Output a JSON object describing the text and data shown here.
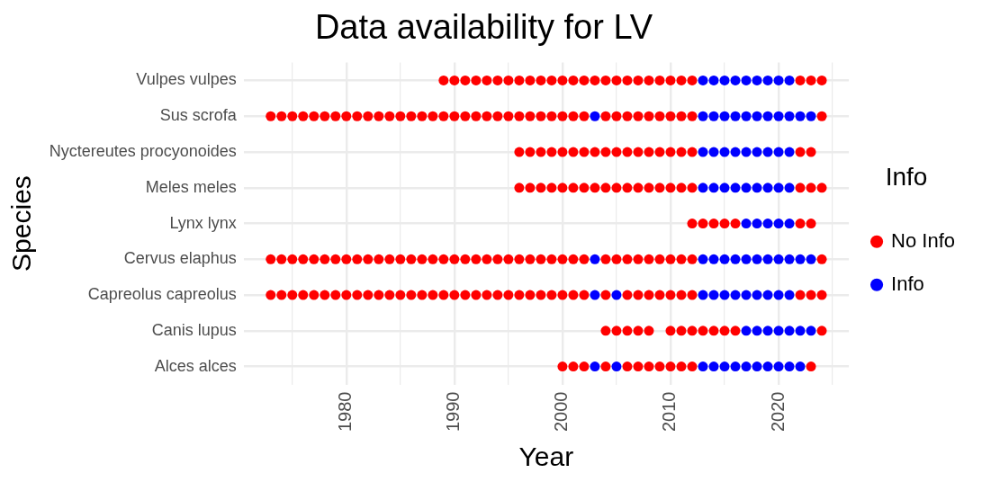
{
  "chart_data": {
    "type": "scatter",
    "title": "Data availability for LV",
    "xlabel": "Year",
    "ylabel": "Species",
    "legend_title": "Info",
    "legend": "right",
    "grid": true,
    "marker": "circle",
    "orientation": "horizontal",
    "categories": [
      "Vulpes vulpes",
      "Sus scrofa",
      "Nyctereutes procyonoides",
      "Meles meles",
      "Lynx lynx",
      "Cervus elaphus",
      "Capreolus capreolus",
      "Canis lupus",
      "Alces alces"
    ],
    "xlim": [
      1970.5,
      2026.5
    ],
    "xticks": [
      {
        "value": 1975,
        "label": null
      },
      1980,
      {
        "value": 1985,
        "label": null
      },
      1990,
      {
        "value": 1995,
        "label": null
      },
      2000,
      {
        "value": 2005,
        "label": null
      },
      2010,
      {
        "value": 2015,
        "label": null
      },
      2020,
      {
        "value": 2025,
        "label": null
      }
    ],
    "series": [
      {
        "name": "No Info",
        "color": "#ff0000",
        "values": [
          null,
          1973,
          null,
          null,
          null,
          1973,
          1973,
          null,
          null
        ]
      },
      {
        "color": "#ff0000",
        "values": [
          null,
          1974,
          null,
          null,
          null,
          1974,
          1974,
          null,
          null
        ]
      },
      {
        "color": "#ff0000",
        "values": [
          null,
          1975,
          null,
          null,
          null,
          1975,
          1975,
          null,
          null
        ]
      },
      {
        "color": "#ff0000",
        "values": [
          null,
          1976,
          null,
          null,
          null,
          1976,
          1976,
          null,
          null
        ]
      },
      {
        "color": "#ff0000",
        "values": [
          null,
          1977,
          null,
          null,
          null,
          1977,
          1977,
          null,
          null
        ]
      },
      {
        "color": "#ff0000",
        "values": [
          null,
          1978,
          null,
          null,
          null,
          1978,
          1978,
          null,
          null
        ]
      },
      {
        "color": "#ff0000",
        "values": [
          null,
          1979,
          null,
          null,
          null,
          1979,
          1979,
          null,
          null
        ]
      },
      {
        "color": "#ff0000",
        "values": [
          null,
          1980,
          null,
          null,
          null,
          1980,
          1980,
          null,
          null
        ]
      },
      {
        "color": "#ff0000",
        "values": [
          null,
          1981,
          null,
          null,
          null,
          1981,
          1981,
          null,
          null
        ]
      },
      {
        "color": "#ff0000",
        "values": [
          null,
          1982,
          null,
          null,
          null,
          1982,
          1982,
          null,
          null
        ]
      },
      {
        "color": "#ff0000",
        "values": [
          null,
          1983,
          null,
          null,
          null,
          1983,
          1983,
          null,
          null
        ]
      },
      {
        "color": "#ff0000",
        "values": [
          null,
          1984,
          null,
          null,
          null,
          1984,
          1984,
          null,
          null
        ]
      },
      {
        "color": "#ff0000",
        "values": [
          null,
          1985,
          null,
          null,
          null,
          1985,
          1985,
          null,
          null
        ]
      },
      {
        "color": "#ff0000",
        "values": [
          null,
          1986,
          null,
          null,
          null,
          1986,
          1986,
          null,
          null
        ]
      },
      {
        "color": "#ff0000",
        "values": [
          null,
          1987,
          null,
          null,
          null,
          1987,
          1987,
          null,
          null
        ]
      },
      {
        "color": "#ff0000",
        "values": [
          null,
          1988,
          null,
          null,
          null,
          1988,
          1988,
          null,
          null
        ]
      },
      {
        "color": "#ff0000",
        "values": [
          1989,
          1989,
          null,
          null,
          null,
          1989,
          1989,
          null,
          null
        ]
      },
      {
        "color": "#ff0000",
        "values": [
          1990,
          1990,
          null,
          null,
          null,
          1990,
          1990,
          null,
          null
        ]
      },
      {
        "color": "#ff0000",
        "values": [
          1991,
          1991,
          null,
          null,
          null,
          1991,
          1991,
          null,
          null
        ]
      },
      {
        "color": "#ff0000",
        "values": [
          1992,
          1992,
          null,
          null,
          null,
          1992,
          1992,
          null,
          null
        ]
      },
      {
        "color": "#ff0000",
        "values": [
          1993,
          1993,
          null,
          null,
          null,
          1993,
          1993,
          null,
          null
        ]
      },
      {
        "color": "#ff0000",
        "values": [
          1994,
          1994,
          null,
          null,
          null,
          1994,
          1994,
          null,
          null
        ]
      },
      {
        "color": "#ff0000",
        "values": [
          1995,
          1995,
          null,
          null,
          null,
          1995,
          1995,
          null,
          null
        ]
      },
      {
        "color": "#ff0000",
        "values": [
          1996,
          1996,
          1996,
          1996,
          null,
          1996,
          1996,
          null,
          null
        ]
      },
      {
        "color": "#ff0000",
        "values": [
          1997,
          1997,
          1997,
          1997,
          null,
          1997,
          1997,
          null,
          null
        ]
      },
      {
        "color": "#ff0000",
        "values": [
          1998,
          1998,
          1998,
          1998,
          null,
          1998,
          1998,
          null,
          null
        ]
      },
      {
        "color": "#ff0000",
        "values": [
          1999,
          1999,
          1999,
          1999,
          null,
          1999,
          1999,
          null,
          null
        ]
      },
      {
        "color": "#ff0000",
        "values": [
          2000,
          2000,
          2000,
          2000,
          null,
          2000,
          2000,
          null,
          2000
        ]
      },
      {
        "color": "#ff0000",
        "values": [
          2001,
          2001,
          2001,
          2001,
          null,
          2001,
          2001,
          null,
          2001
        ]
      },
      {
        "color": "#ff0000",
        "values": [
          2002,
          2002,
          2002,
          2002,
          null,
          2002,
          2002,
          null,
          2002
        ]
      },
      {
        "color": "#ff0000",
        "values": [
          2003,
          null,
          2003,
          2003,
          null,
          null,
          null,
          null,
          null
        ]
      },
      {
        "color": "#ff0000",
        "values": [
          2004,
          2004,
          2004,
          2004,
          null,
          2004,
          2004,
          2004,
          2004
        ]
      },
      {
        "color": "#ff0000",
        "values": [
          2005,
          2005,
          2005,
          2005,
          null,
          2005,
          null,
          2005,
          null
        ]
      },
      {
        "color": "#ff0000",
        "values": [
          2006,
          2006,
          2006,
          2006,
          null,
          2006,
          2006,
          2006,
          2006
        ]
      },
      {
        "color": "#ff0000",
        "values": [
          2007,
          2007,
          2007,
          2007,
          null,
          2007,
          2007,
          2007,
          2007
        ]
      },
      {
        "color": "#ff0000",
        "values": [
          2008,
          2008,
          2008,
          2008,
          null,
          2008,
          2008,
          2008,
          2008
        ]
      },
      {
        "color": "#ff0000",
        "values": [
          2009,
          2009,
          2009,
          2009,
          null,
          2009,
          2009,
          null,
          2009
        ]
      },
      {
        "color": "#ff0000",
        "values": [
          2010,
          2010,
          2010,
          2010,
          null,
          2010,
          2010,
          2010,
          2010
        ]
      },
      {
        "color": "#ff0000",
        "values": [
          2011,
          2011,
          2011,
          2011,
          null,
          2011,
          2011,
          2011,
          2011
        ]
      },
      {
        "color": "#ff0000",
        "values": [
          2012,
          2012,
          2012,
          2012,
          2012,
          2012,
          2012,
          2012,
          2012
        ]
      },
      {
        "color": "#ff0000",
        "values": [
          null,
          null,
          null,
          null,
          2013,
          null,
          null,
          2013,
          null
        ]
      },
      {
        "color": "#ff0000",
        "values": [
          null,
          null,
          null,
          null,
          2014,
          null,
          null,
          2014,
          null
        ]
      },
      {
        "color": "#ff0000",
        "values": [
          null,
          null,
          null,
          null,
          2015,
          null,
          null,
          2015,
          null
        ]
      },
      {
        "color": "#ff0000",
        "values": [
          null,
          null,
          null,
          null,
          2016,
          null,
          null,
          2016,
          null
        ]
      },
      {
        "color": "#ff0000",
        "values": [
          2022,
          null,
          2022,
          2022,
          2022,
          null,
          2022,
          null,
          null
        ]
      },
      {
        "color": "#ff0000",
        "values": [
          2023,
          null,
          2023,
          2023,
          2023,
          null,
          2023,
          null,
          2023
        ]
      },
      {
        "color": "#ff0000",
        "values": [
          2024,
          2024,
          null,
          2024,
          null,
          2024,
          2024,
          2024,
          null
        ]
      },
      {
        "name": "Info",
        "color": "#0000ff",
        "values": [
          null,
          2003,
          null,
          null,
          null,
          2003,
          2003,
          null,
          2003
        ]
      },
      {
        "color": "#0000ff",
        "values": [
          null,
          null,
          null,
          null,
          null,
          null,
          2005,
          null,
          2005
        ]
      },
      {
        "color": "#0000ff",
        "values": [
          2013,
          2013,
          2013,
          2013,
          null,
          2013,
          2013,
          null,
          2013
        ]
      },
      {
        "color": "#0000ff",
        "values": [
          2014,
          2014,
          2014,
          2014,
          null,
          2014,
          2014,
          null,
          2014
        ]
      },
      {
        "color": "#0000ff",
        "values": [
          2015,
          2015,
          2015,
          2015,
          null,
          2015,
          2015,
          null,
          2015
        ]
      },
      {
        "color": "#0000ff",
        "values": [
          2016,
          2016,
          2016,
          2016,
          null,
          2016,
          2016,
          null,
          2016
        ]
      },
      {
        "color": "#0000ff",
        "values": [
          2017,
          2017,
          2017,
          2017,
          2017,
          2017,
          2017,
          2017,
          2017
        ]
      },
      {
        "color": "#0000ff",
        "values": [
          2018,
          2018,
          2018,
          2018,
          2018,
          2018,
          2018,
          2018,
          2018
        ]
      },
      {
        "color": "#0000ff",
        "values": [
          2019,
          2019,
          2019,
          2019,
          2019,
          2019,
          2019,
          2019,
          2019
        ]
      },
      {
        "color": "#0000ff",
        "values": [
          2020,
          2020,
          2020,
          2020,
          2020,
          2020,
          2020,
          2020,
          2020
        ]
      },
      {
        "color": "#0000ff",
        "values": [
          2021,
          2021,
          2021,
          2021,
          2021,
          2021,
          2021,
          2021,
          2021
        ]
      },
      {
        "color": "#0000ff",
        "values": [
          null,
          2022,
          null,
          null,
          null,
          2022,
          null,
          2022,
          2022
        ]
      },
      {
        "color": "#0000ff",
        "values": [
          null,
          2023,
          null,
          null,
          null,
          2023,
          null,
          2023,
          null
        ]
      }
    ]
  }
}
